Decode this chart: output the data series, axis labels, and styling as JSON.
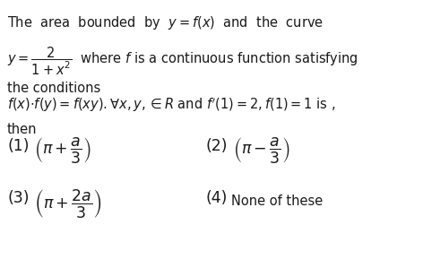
{
  "background_color": "#ffffff",
  "text_color": "#1a1a1a",
  "figsize": [
    4.91,
    2.99
  ],
  "dpi": 100,
  "line1": "The  area  bounded  by  $y = f(x)$  and  the  curve",
  "line2_left": "$y = \\dfrac{2}{1+x^{2}}$",
  "line2_right": "  where $f$ is a continuous function satisfying",
  "line3": "the conditions",
  "line4": "$f(x){\\cdot}f(y) = f(xy).\\forall x, y,{\\in} R$ and $f'(1) = 2, f(1) = 1$ is ,",
  "line5": "then",
  "opt1_label": "(1)",
  "opt1_expr": "$\\left(\\pi + \\dfrac{a}{3}\\right)$",
  "opt2_label": "(2)",
  "opt2_expr": "$\\left(\\pi - \\dfrac{a}{3}\\right)$",
  "opt3_label": "(3)",
  "opt3_expr": "$\\left(\\pi + \\dfrac{2a}{3}\\right)$",
  "opt4_label": "(4)",
  "opt4_expr": "None of these",
  "font_size_body": 10.5,
  "font_size_options": 12.5
}
